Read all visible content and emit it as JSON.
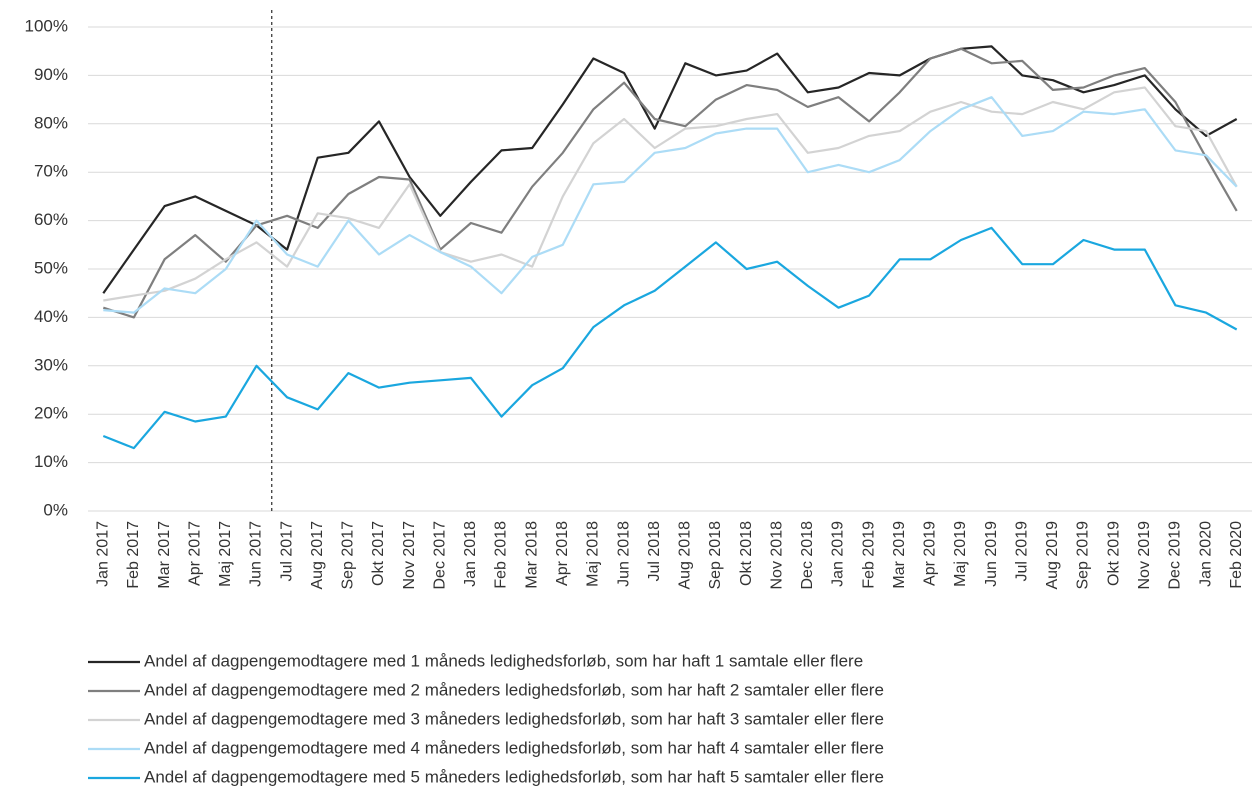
{
  "chart_data": {
    "type": "line",
    "categories": [
      "Jan 2017",
      "Feb 2017",
      "Mar 2017",
      "Apr 2017",
      "Maj 2017",
      "Jun 2017",
      "Jul 2017",
      "Aug 2017",
      "Sep 2017",
      "Okt 2017",
      "Nov 2017",
      "Dec 2017",
      "Jan 2018",
      "Feb 2018",
      "Mar 2018",
      "Apr 2018",
      "Maj 2018",
      "Jun 2018",
      "Jul 2018",
      "Aug 2018",
      "Sep 2018",
      "Okt 2018",
      "Nov 2018",
      "Dec 2018",
      "Jan 2019",
      "Feb 2019",
      "Mar 2019",
      "Apr 2019",
      "Maj 2019",
      "Jun 2019",
      "Jul 2019",
      "Aug 2019",
      "Sep 2019",
      "Okt 2019",
      "Nov 2019",
      "Dec 2019",
      "Jan 2020",
      "Feb 2020"
    ],
    "series": [
      {
        "name": "Andel af dagpengemodtagere med 1 måneds ledighedsforløb, som har haft 1 samtale eller flere",
        "color": "#262626",
        "values": [
          45,
          54,
          63,
          65,
          62,
          59,
          54,
          73,
          74,
          80.5,
          69,
          61,
          68,
          74.5,
          75,
          84,
          93.5,
          90.5,
          79,
          92.5,
          90,
          91,
          94.5,
          86.5,
          87.5,
          90.5,
          90,
          93.5,
          95.5,
          96,
          90,
          89,
          86.5,
          88,
          90,
          83,
          77.5,
          81
        ]
      },
      {
        "name": "Andel af dagpengemodtagere med 2 måneders ledighedsforløb, som har haft 2 samtaler eller flere",
        "color": "#7f7f7f",
        "values": [
          42,
          40,
          52,
          57,
          51.5,
          59,
          61,
          58.5,
          65.5,
          69,
          68.5,
          54,
          59.5,
          57.5,
          67,
          74,
          83,
          88.5,
          81,
          79.5,
          85,
          88,
          87,
          83.5,
          85.5,
          80.5,
          86.5,
          93.5,
          95.5,
          92.5,
          93,
          87,
          87.5,
          90,
          91.5,
          84.5,
          73,
          62
        ]
      },
      {
        "name": "Andel af dagpengemodtagere med 3 måneders ledighedsforløb, som har haft 3 samtaler eller flere",
        "color": "#d3d3d3",
        "values": [
          43.5,
          44.5,
          45.5,
          48,
          52,
          55.5,
          50.5,
          61.5,
          60.5,
          58.5,
          67.5,
          53.5,
          51.5,
          53,
          50.5,
          65,
          76,
          81,
          75,
          79,
          79.5,
          81,
          82,
          74,
          75,
          77.5,
          78.5,
          82.5,
          84.5,
          82.5,
          82,
          84.5,
          83,
          86.5,
          87.5,
          79.5,
          78.5,
          67
        ]
      },
      {
        "name": "Andel af dagpengemodtagere med 4 måneders ledighedsforløb, som har haft 4 samtaler eller flere",
        "color": "#acdcf6",
        "values": [
          41.5,
          41,
          46,
          45,
          50,
          60,
          53,
          50.5,
          60,
          53,
          57,
          53.5,
          50.5,
          45,
          52.5,
          55,
          67.5,
          68,
          74,
          75,
          78,
          79,
          79,
          70,
          71.5,
          70,
          72.5,
          78.5,
          83,
          85.5,
          77.5,
          78.5,
          82.5,
          82,
          83,
          74.5,
          73.5,
          67
        ]
      },
      {
        "name": "Andel af dagpengemodtagere med 5 måneders ledighedsforløb, som har haft 5 samtaler eller flere",
        "color": "#1aa7df",
        "values": [
          15.5,
          13,
          20.5,
          18.5,
          19.5,
          30,
          23.5,
          21,
          28.5,
          25.5,
          26.5,
          27,
          27.5,
          19.5,
          26,
          29.5,
          38,
          42.5,
          45.5,
          50.5,
          55.5,
          50,
          51.5,
          46.5,
          42,
          44.5,
          52,
          52,
          56,
          58.5,
          51,
          51,
          56,
          54,
          54,
          42.5,
          41,
          37.5
        ]
      }
    ],
    "ylim": [
      0,
      100
    ],
    "yticks": [
      {
        "value": 0,
        "label": "0%"
      },
      {
        "value": 10,
        "label": "10%"
      },
      {
        "value": 20,
        "label": "20%"
      },
      {
        "value": 30,
        "label": "30%"
      },
      {
        "value": 40,
        "label": "40%"
      },
      {
        "value": 50,
        "label": "50%"
      },
      {
        "value": 60,
        "label": "60%"
      },
      {
        "value": 70,
        "label": "70%"
      },
      {
        "value": 80,
        "label": "80%"
      },
      {
        "value": 90,
        "label": "90%"
      },
      {
        "value": 100,
        "label": "100%"
      }
    ],
    "grid": true,
    "legend": "bottom"
  }
}
